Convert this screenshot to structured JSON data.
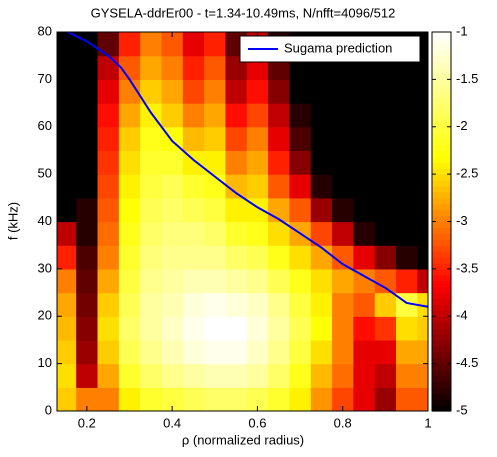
{
  "chart_data": {
    "type": "heatmap",
    "title": "GYSELA-ddrEr00 - t=1.34-10.49ms, N/nfft=4096/512",
    "xlabel": "ρ (normalized radius)",
    "ylabel": "f (kHz)",
    "xlim": [
      0.13,
      1
    ],
    "ylim": [
      0,
      80
    ],
    "xticks": [
      0.2,
      0.4,
      0.6,
      0.8,
      1
    ],
    "yticks": [
      0,
      10,
      20,
      30,
      40,
      50,
      60,
      70,
      80
    ],
    "x": [
      0.15,
      0.2,
      0.25,
      0.3,
      0.35,
      0.4,
      0.45,
      0.5,
      0.55,
      0.6,
      0.65,
      0.7,
      0.75,
      0.8,
      0.85,
      0.9,
      0.95,
      1.0
    ],
    "y": [
      2.5,
      7.5,
      12.5,
      17.5,
      22.5,
      27.5,
      32.5,
      37.5,
      42.5,
      47.5,
      52.5,
      57.5,
      62.5,
      67.5,
      72.5,
      77.5
    ],
    "z": [
      [
        -2.6,
        -3,
        -3,
        -2.4,
        -2.1,
        -2,
        -1.9,
        -1.8,
        -1.8,
        -1.9,
        -2.1,
        -2.4,
        -2.9,
        -3.3,
        -3.8,
        -4.2,
        -3.2,
        -3.2
      ],
      [
        -2.5,
        -4,
        -2.8,
        -2.1,
        -1.8,
        -1.6,
        -1.5,
        -1.4,
        -1.4,
        -1.5,
        -1.8,
        -2.2,
        -2.7,
        -3.1,
        -3.8,
        -4,
        -3,
        -3
      ],
      [
        -2.6,
        -4.2,
        -2.6,
        -1.9,
        -1.6,
        -1.4,
        -1.2,
        -1.1,
        -1.1,
        -1.3,
        -1.6,
        -2,
        -2.5,
        -3,
        -3.8,
        -3.8,
        -2.8,
        -2.8
      ],
      [
        -2.7,
        -4.3,
        -2.5,
        -1.8,
        -1.5,
        -1.3,
        -1.1,
        -1,
        -1,
        -1.2,
        -1.5,
        -1.9,
        -2.3,
        -3,
        -3.6,
        -3.4,
        -2.5,
        -2.6
      ],
      [
        -2.8,
        -4.4,
        -2.6,
        -1.9,
        -1.5,
        -1.4,
        -1.2,
        -1.1,
        -1.2,
        -1.3,
        -1.6,
        -2,
        -2.4,
        -3,
        -3.2,
        -2.6,
        -2,
        -2.5
      ],
      [
        -3,
        -4.5,
        -2.8,
        -2,
        -1.6,
        -1.5,
        -1.4,
        -1.4,
        -1.5,
        -1.6,
        -1.9,
        -2.2,
        -2.5,
        -2.8,
        -3,
        -3.2,
        -3.5,
        -4
      ],
      [
        -3.5,
        -4.6,
        -3,
        -2.1,
        -1.7,
        -1.6,
        -1.6,
        -1.6,
        -1.8,
        -1.9,
        -2.2,
        -2.5,
        -2.8,
        -3.2,
        -3.8,
        -4.3,
        -4.8,
        -5
      ],
      [
        -4,
        -4.8,
        -3.1,
        -2.2,
        -1.8,
        -1.7,
        -1.7,
        -1.8,
        -2.1,
        -2.2,
        -2.5,
        -2.8,
        -3.3,
        -4,
        -4.8,
        -5,
        -5,
        -5
      ],
      [
        -5,
        -4.8,
        -3.2,
        -2.3,
        -1.9,
        -1.8,
        -1.9,
        -2,
        -2.4,
        -2.4,
        -2.8,
        -3.2,
        -4.2,
        -4.8,
        -5,
        -5,
        -5,
        -5
      ],
      [
        -5,
        -5,
        -3.3,
        -2.4,
        -2,
        -1.9,
        -2.1,
        -2.2,
        -2.7,
        -2.6,
        -3.2,
        -3.8,
        -4.8,
        -5,
        -5,
        -5,
        -5,
        -5
      ],
      [
        -5,
        -5,
        -3.4,
        -2.5,
        -2.1,
        -2.1,
        -2.4,
        -2.4,
        -3,
        -2.8,
        -3.5,
        -4.3,
        -5,
        -5,
        -5,
        -5,
        -5,
        -5
      ],
      [
        -5,
        -5,
        -3.5,
        -2.6,
        -2.2,
        -2.3,
        -2.7,
        -2.6,
        -3.3,
        -3,
        -3.8,
        -4.6,
        -5,
        -5,
        -5,
        -5,
        -5,
        -5
      ],
      [
        -5,
        -5,
        -3.6,
        -2.8,
        -2.4,
        -2.6,
        -3,
        -2.8,
        -3.6,
        -3.3,
        -4,
        -4.8,
        -5,
        -5,
        -5,
        -5,
        -5,
        -5
      ],
      [
        -5,
        -5,
        -3.8,
        -3,
        -2.6,
        -2.8,
        -3.3,
        -3,
        -4,
        -3.6,
        -4.3,
        -5,
        -5,
        -5,
        -5,
        -5,
        -5,
        -5
      ],
      [
        -5,
        -5,
        -4,
        -3.2,
        -2.8,
        -3,
        -3.5,
        -3.2,
        -4.2,
        -3.8,
        -4.5,
        -5,
        -5,
        -5,
        -5,
        -5,
        -5,
        -5
      ],
      [
        -5,
        -5,
        -4.5,
        -3.5,
        -3,
        -3.2,
        -3.8,
        -3.5,
        -4.5,
        -4,
        -4.8,
        -5,
        -5,
        -5,
        -5,
        -5,
        -5,
        -5
      ]
    ],
    "colormap": "hot",
    "clim": [
      -5,
      -1
    ],
    "cticks": [
      -5,
      -4.5,
      -4,
      -3.5,
      -3,
      -2.5,
      -2,
      -1.5,
      -1
    ],
    "legend": "upper right",
    "series": [
      {
        "name": "Sugama prediction",
        "type": "line",
        "color": "#0000ff",
        "x": [
          0.155,
          0.2,
          0.25,
          0.28,
          0.3,
          0.35,
          0.4,
          0.45,
          0.5,
          0.55,
          0.6,
          0.65,
          0.7,
          0.75,
          0.8,
          0.85,
          0.9,
          0.95,
          1.0
        ],
        "values": [
          80,
          78,
          75,
          72.5,
          70,
          63,
          57,
          53,
          49.5,
          46,
          43,
          40.5,
          37.5,
          34.5,
          31,
          28.5,
          26,
          22.8,
          22
        ]
      }
    ]
  }
}
